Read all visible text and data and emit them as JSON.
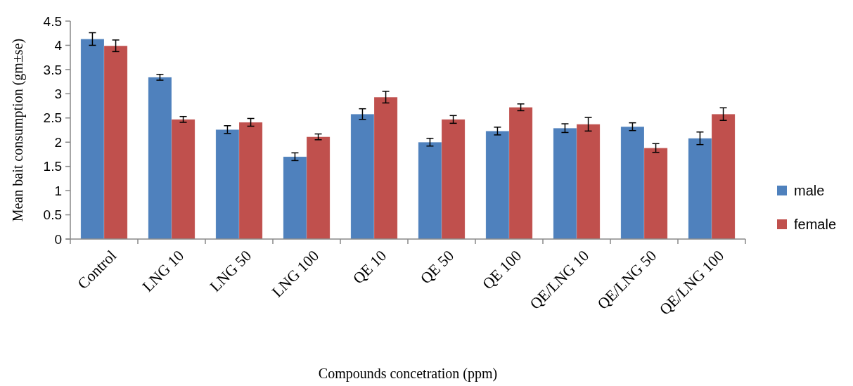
{
  "chart_data": {
    "type": "bar",
    "xlabel": "Compounds concetration (ppm)",
    "ylabel": "Mean bait consumption (gm±se)",
    "categories": [
      "Control",
      "LNG 10",
      "LNG 50",
      "LNG 100",
      "QE 10",
      "QE 50",
      "QE 100",
      "QE/LNG 10",
      "QE/LNG 50",
      "QE/LNG 100"
    ],
    "series": [
      {
        "name": "male",
        "color": "#4f81bd",
        "values": [
          4.13,
          3.34,
          2.26,
          1.7,
          2.58,
          2.0,
          2.23,
          2.29,
          2.32,
          2.08
        ],
        "errors": [
          0.13,
          0.06,
          0.08,
          0.08,
          0.11,
          0.08,
          0.08,
          0.09,
          0.08,
          0.13
        ]
      },
      {
        "name": "female",
        "color": "#c0504d",
        "values": [
          3.99,
          2.47,
          2.41,
          2.11,
          2.93,
          2.47,
          2.72,
          2.37,
          1.88,
          2.58
        ],
        "errors": [
          0.12,
          0.06,
          0.08,
          0.06,
          0.12,
          0.08,
          0.07,
          0.14,
          0.09,
          0.13
        ]
      }
    ],
    "ylim": [
      0,
      4.5
    ],
    "yticks": [
      0,
      {
        "value": 0.5,
        "label": "0.5"
      },
      1,
      {
        "value": 1.5,
        "label": "1.5"
      },
      2,
      {
        "value": 2.5,
        "label": "2.5"
      },
      3,
      {
        "value": 3.5,
        "label": "3.5"
      },
      4,
      {
        "value": 4.5,
        "label": "4.5"
      }
    ],
    "grid": false,
    "legend": "right"
  }
}
